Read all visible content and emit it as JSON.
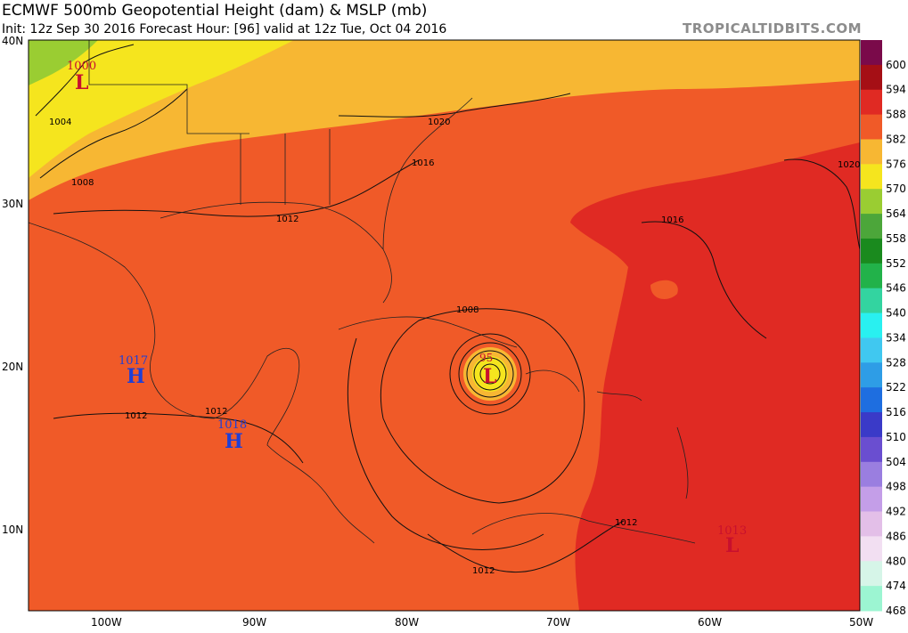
{
  "header": {
    "title": "ECMWF 500mb Geopotential Height (dam) & MSLP (mb)",
    "subtitle": "Init: 12z Sep 30 2016   Forecast Hour: [96]   valid at 12z Tue, Oct 04 2016",
    "brand": "TROPICALTIDBITS.COM"
  },
  "axes": {
    "lat_labels": [
      "40N",
      "30N",
      "20N",
      "10N"
    ],
    "lon_labels": [
      "100W",
      "90W",
      "80W",
      "70W",
      "60W",
      "50W"
    ]
  },
  "colorbar": {
    "levels": [
      "600",
      "594",
      "588",
      "582",
      "576",
      "570",
      "564",
      "558",
      "552",
      "546",
      "540",
      "534",
      "528",
      "522",
      "516",
      "510",
      "504",
      "498",
      "492",
      "486",
      "480",
      "474",
      "468"
    ],
    "colors": [
      "#7a0a4a",
      "#a50f15",
      "#e02a23",
      "#f05a28",
      "#f7b733",
      "#f5e51e",
      "#9acd32",
      "#4ca63a",
      "#1a8a1e",
      "#22b24a",
      "#33d4a0",
      "#29f0f0",
      "#40c8f0",
      "#2e9de6",
      "#1e6ee0",
      "#3a3ac8",
      "#6a4ed0",
      "#9a7ee0",
      "#c49ee8",
      "#e3bfe8",
      "#f2dff2",
      "#d6f5e8",
      "#9cf5d2"
    ]
  },
  "pressure_centers": [
    {
      "type": "L",
      "value": "1000",
      "color": "#c8102e"
    },
    {
      "type": "L",
      "value": "95",
      "color": "#c8102e"
    },
    {
      "type": "L",
      "value": "1013",
      "color": "#c8102e"
    },
    {
      "type": "H",
      "value": "1017",
      "color": "#1f3fd6"
    },
    {
      "type": "H",
      "value": "1018",
      "color": "#1f3fd6"
    }
  ],
  "isobar_labels": [
    "1004",
    "1008",
    "1012",
    "1016",
    "1020",
    "1008",
    "1012",
    "1016",
    "1020",
    "1012",
    "1012",
    "1012"
  ]
}
